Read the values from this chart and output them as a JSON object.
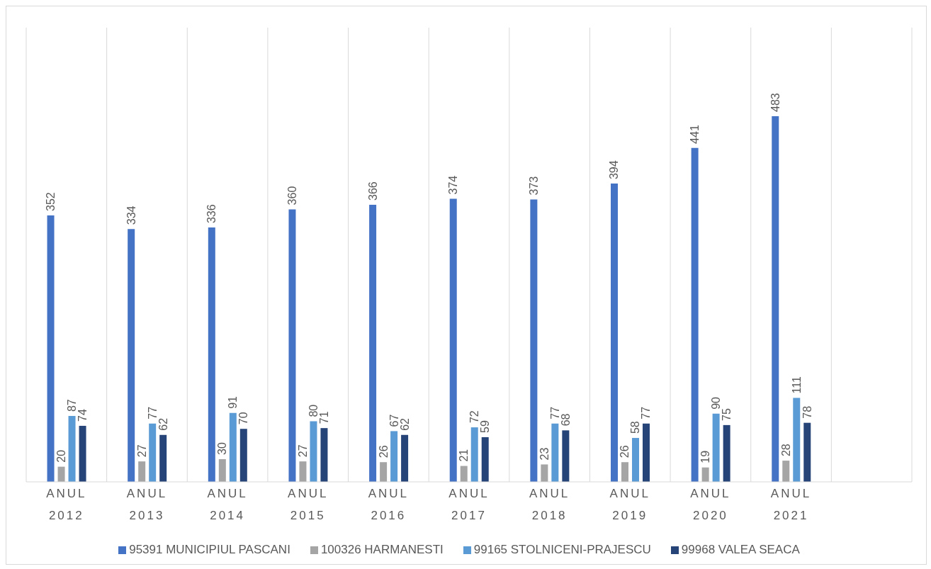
{
  "chart_data": {
    "type": "bar",
    "categories": [
      "ANUL 2012",
      "ANUL 2013",
      "ANUL 2014",
      "ANUL 2015",
      "ANUL 2016",
      "ANUL 2017",
      "ANUL 2018",
      "ANUL 2019",
      "ANUL 2020",
      "ANUL 2021",
      null
    ],
    "series": [
      {
        "name": "95391 MUNICIPIUL PASCANI",
        "color": "#4472c4",
        "values": [
          352,
          334,
          336,
          360,
          366,
          374,
          373,
          394,
          441,
          483,
          null
        ]
      },
      {
        "name": "100326 HARMANESTI",
        "color": "#a5a5a5",
        "values": [
          20,
          27,
          30,
          27,
          26,
          21,
          23,
          26,
          19,
          28,
          null
        ]
      },
      {
        "name": "99165 STOLNICENI-PRAJESCU",
        "color": "#5b9bd5",
        "values": [
          87,
          77,
          91,
          80,
          67,
          72,
          77,
          58,
          90,
          111,
          null
        ]
      },
      {
        "name": "99968 VALEA SEACA",
        "color": "#264478",
        "values": [
          74,
          62,
          70,
          71,
          62,
          59,
          68,
          77,
          75,
          78,
          null
        ]
      }
    ],
    "ylim": [
      0,
      600
    ],
    "tick_labels": "x",
    "data_labels": true,
    "grid": "x",
    "legend": "bottom"
  }
}
